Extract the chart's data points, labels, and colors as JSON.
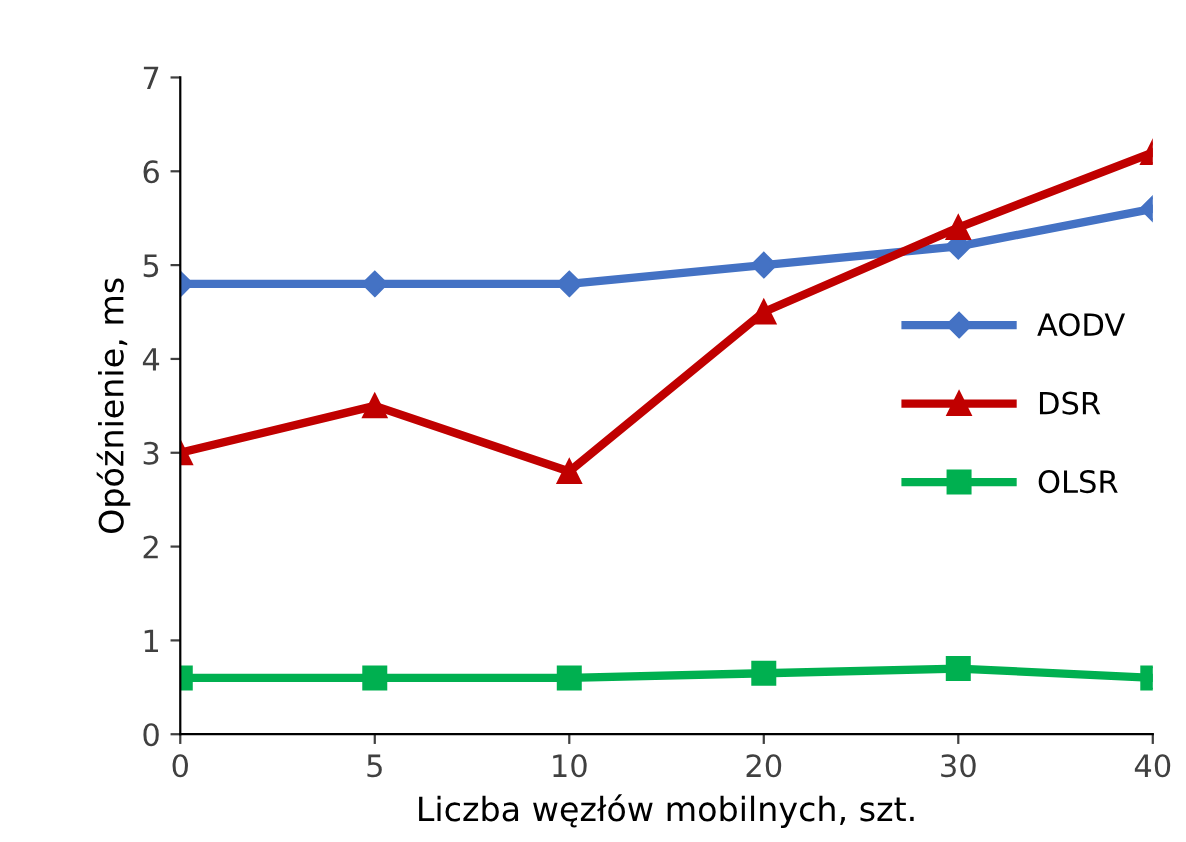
{
  "chart_data": {
    "type": "line",
    "xlabel": "Liczba węzłów mobilnych, szt.",
    "ylabel": "Opóźnienie, ms",
    "categories": [
      "0",
      "5",
      "10",
      "20",
      "30",
      "40"
    ],
    "series": [
      {
        "name": "AODV",
        "color": "#4472c4",
        "marker": "diamond",
        "values": [
          4.8,
          4.8,
          4.8,
          5.0,
          5.2,
          5.6
        ]
      },
      {
        "name": "DSR",
        "color": "#c00000",
        "marker": "triangle",
        "values": [
          3.0,
          3.5,
          2.8,
          4.5,
          5.4,
          6.2
        ]
      },
      {
        "name": "OLSR",
        "color": "#00b050",
        "marker": "square",
        "values": [
          0.6,
          0.6,
          0.6,
          0.65,
          0.7,
          0.6
        ]
      }
    ],
    "ylim": [
      0,
      7
    ],
    "yticks": [
      0,
      1,
      2,
      3,
      4,
      5,
      6,
      7
    ],
    "grid": false,
    "legend": "right",
    "line_style": "solid"
  }
}
